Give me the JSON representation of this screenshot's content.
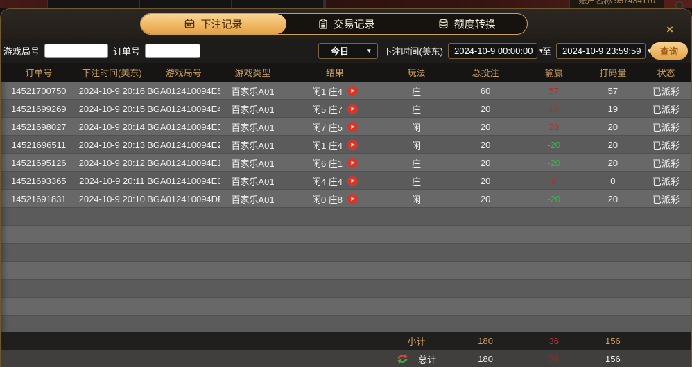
{
  "background": {
    "account_text": "账户名称  957434110"
  },
  "modal": {
    "close_glyph": "×"
  },
  "icons": {
    "caret": "▼",
    "play": "▶"
  },
  "tabs": [
    {
      "label": "下注记录",
      "icon": "calendar-icon",
      "active": true
    },
    {
      "label": "交易记录",
      "icon": "clipboard-icon",
      "active": false
    },
    {
      "label": "额度转换",
      "icon": "coins-icon",
      "active": false
    }
  ],
  "filters": {
    "game_round_label": "游戏局号",
    "order_no_label": "订单号",
    "range_preset": "今日",
    "bet_time_label": "下注时间(美东)",
    "date_from": "2024-10-9 00:00:00",
    "to_label": "至",
    "date_to": "2024-10-9 23:59:59",
    "search_label": "查询"
  },
  "table": {
    "headers": [
      "订单号",
      "下注时间(美东)",
      "游戏局号",
      "游戏类型",
      "结果",
      "玩法",
      "总投注",
      "输赢",
      "打码量",
      "状态"
    ],
    "rows": [
      {
        "order_no": "14521700750",
        "bet_time": "2024-10-9 20:16",
        "round": "BGA012410094E5",
        "game_type": "百家乐A01",
        "result": "闲1 庄4",
        "play": "庄",
        "total_bet": "60",
        "win_loss": "57",
        "win_loss_color": "red",
        "turnover": "57",
        "status": "已派彩"
      },
      {
        "order_no": "14521699269",
        "bet_time": "2024-10-9 20:15",
        "round": "BGA012410094E4",
        "game_type": "百家乐A01",
        "result": "闲5 庄7",
        "play": "庄",
        "total_bet": "20",
        "win_loss": "19",
        "win_loss_color": "red",
        "turnover": "19",
        "status": "已派彩"
      },
      {
        "order_no": "14521698027",
        "bet_time": "2024-10-9 20:14",
        "round": "BGA012410094E3",
        "game_type": "百家乐A01",
        "result": "闲7 庄5",
        "play": "闲",
        "total_bet": "20",
        "win_loss": "20",
        "win_loss_color": "red",
        "turnover": "20",
        "status": "已派彩"
      },
      {
        "order_no": "14521696511",
        "bet_time": "2024-10-9 20:13",
        "round": "BGA012410094E2",
        "game_type": "百家乐A01",
        "result": "闲1 庄4",
        "play": "闲",
        "total_bet": "20",
        "win_loss": "-20",
        "win_loss_color": "green",
        "turnover": "20",
        "status": "已派彩"
      },
      {
        "order_no": "14521695126",
        "bet_time": "2024-10-9 20:12",
        "round": "BGA012410094E1",
        "game_type": "百家乐A01",
        "result": "闲6 庄1",
        "play": "庄",
        "total_bet": "20",
        "win_loss": "-20",
        "win_loss_color": "green",
        "turnover": "20",
        "status": "已派彩"
      },
      {
        "order_no": "14521693365",
        "bet_time": "2024-10-9 20:11",
        "round": "BGA012410094E0",
        "game_type": "百家乐A01",
        "result": "闲4 庄4",
        "play": "庄",
        "total_bet": "20",
        "win_loss": "0",
        "win_loss_color": "red",
        "turnover": "0",
        "status": "已派彩"
      },
      {
        "order_no": "14521691831",
        "bet_time": "2024-10-9 20:10",
        "round": "BGA012410094DF",
        "game_type": "百家乐A01",
        "result": "闲0 庄8",
        "play": "闲",
        "total_bet": "20",
        "win_loss": "-20",
        "win_loss_color": "green",
        "turnover": "20",
        "status": "已派彩"
      }
    ],
    "subtotal": {
      "label": "小计",
      "total_bet": "180",
      "win_loss": "36",
      "turnover": "156"
    },
    "total": {
      "label": "总计",
      "total_bet": "180",
      "win_loss": "36",
      "turnover": "156"
    }
  },
  "colors": {
    "accent_gold": "#e9b45f",
    "tab_text_dark": "#4a2e08",
    "win_red": "#a83232",
    "loss_green": "#3db44b",
    "header_gold": "#c49a5f"
  }
}
